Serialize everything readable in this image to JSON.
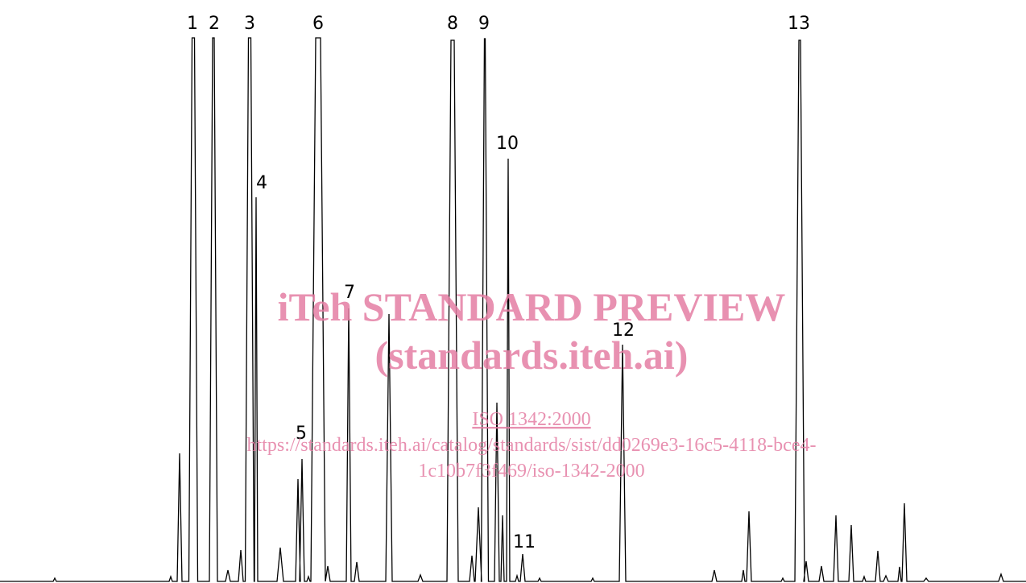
{
  "peak_labels": [
    "1",
    "2",
    "3",
    "4",
    "5",
    "6",
    "7",
    "8",
    "9",
    "10",
    "11",
    "12",
    "13"
  ],
  "watermark": {
    "title": "iTeh STANDARD PREVIEW",
    "subtitle": "(standards.iteh.ai)",
    "link": "ISO 1342:2000",
    "url_line1": "https://standards.iteh.ai/catalog/standards/sist/dd0269e3-16c5-4118-bce4-",
    "url_line2": "1c10b7f3f469/iso-1342-2000"
  }
}
